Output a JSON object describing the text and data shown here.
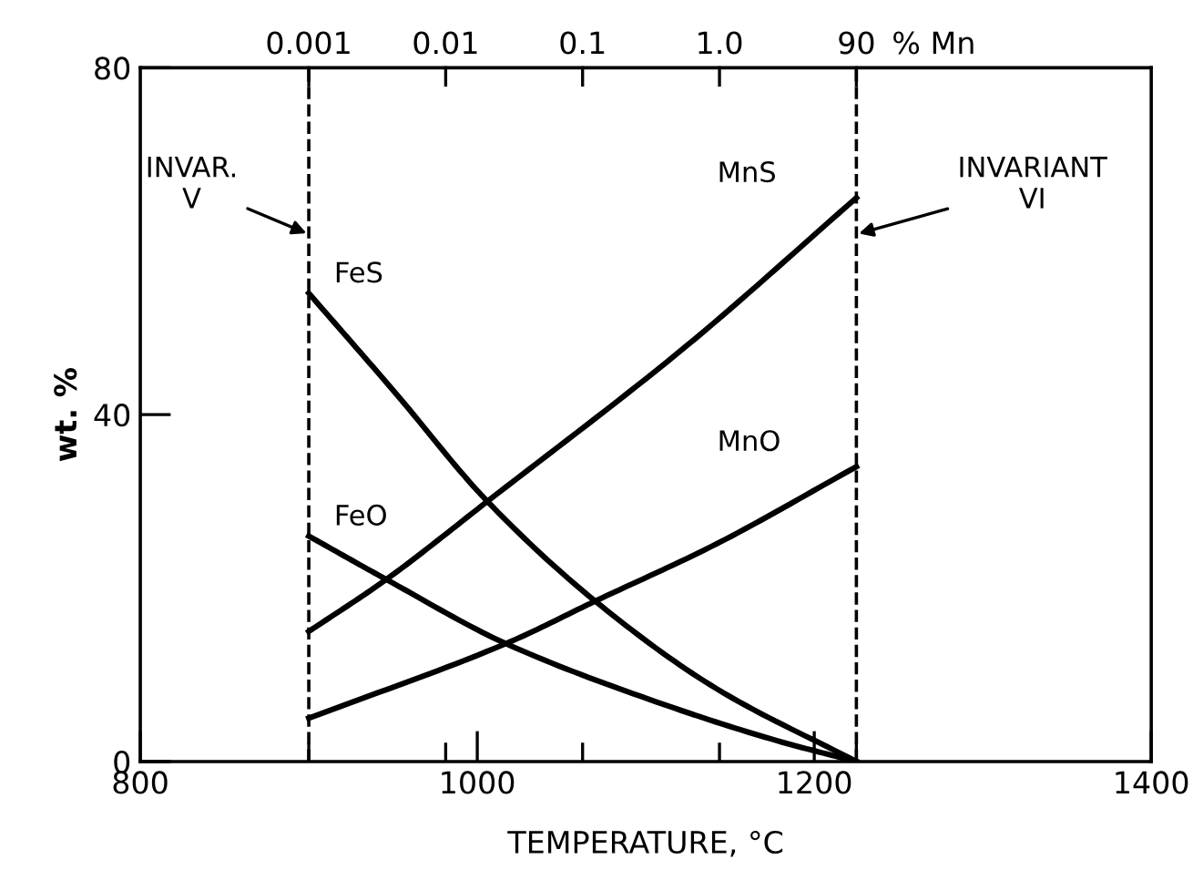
{
  "chart_data": {
    "type": "line",
    "xlabel": "TEMPERATURE, °C",
    "ylabel": "wt. %",
    "xlim": [
      800,
      1400
    ],
    "xticks": [
      800,
      1000,
      1200,
      1400
    ],
    "ylim": [
      0,
      80
    ],
    "yticks": [
      0,
      40,
      80
    ],
    "color": "#000000",
    "grid": false,
    "marker": "none",
    "line_style": "solid",
    "series": [
      {
        "name": "FeS",
        "x": [
          900,
          951,
          1006,
          1070,
          1142,
          1225
        ],
        "values": [
          54,
          42.6,
          30,
          18.5,
          8.4,
          0
        ]
      },
      {
        "name": "FeO",
        "x": [
          900,
          946,
          1017,
          1106,
          1178,
          1225
        ],
        "values": [
          26,
          21,
          13.6,
          6.9,
          2.4,
          0
        ]
      },
      {
        "name": "MnS",
        "x": [
          900,
          946,
          1006,
          1124,
          1225
        ],
        "values": [
          15,
          21,
          30,
          47.9,
          65
        ]
      },
      {
        "name": "MnO",
        "x": [
          900,
          1017,
          1070,
          1142,
          1225
        ],
        "values": [
          5,
          13.6,
          18.5,
          25.1,
          34
        ]
      }
    ],
    "ref_lines": [
      {
        "axis": "x",
        "value": 900,
        "label": "INVAR.\nV",
        "line_style": "dashed"
      },
      {
        "axis": "x",
        "value": 1225,
        "label": "INVARIANT\nVI",
        "line_style": "dashed"
      }
    ],
    "annotations": [
      {
        "text": "0.001",
        "x": 900,
        "y": 80
      },
      "0.01",
      "0.1",
      "1.0",
      {
        "text": "90",
        "x": 1225,
        "y": 80
      },
      "% Mn"
    ]
  }
}
